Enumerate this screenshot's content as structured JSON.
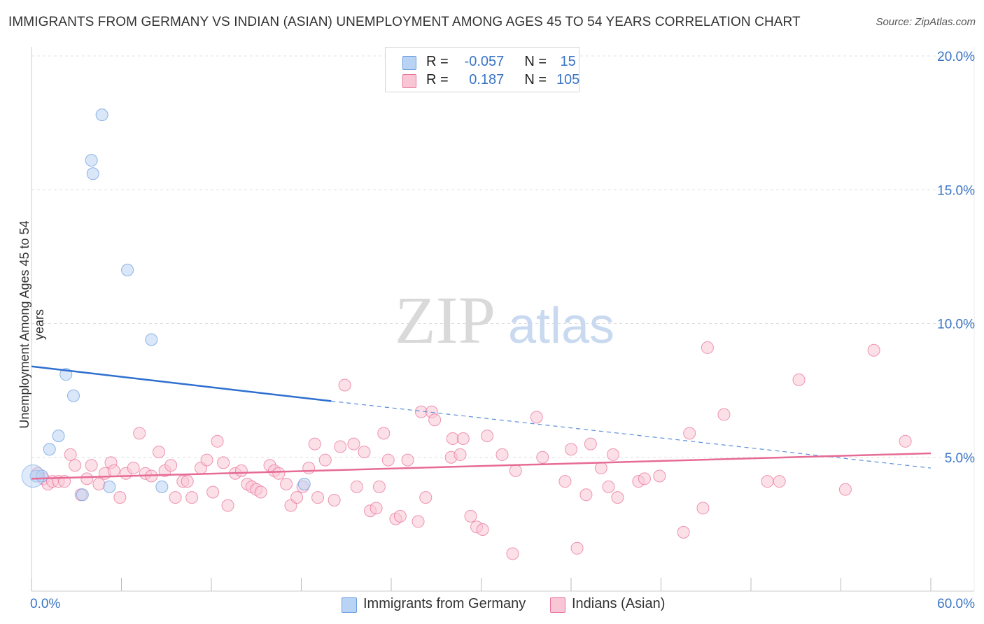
{
  "title": "IMMIGRANTS FROM GERMANY VS INDIAN (ASIAN) UNEMPLOYMENT AMONG AGES 45 TO 54 YEARS CORRELATION CHART",
  "source": "Source: ZipAtlas.com",
  "watermark": {
    "zip": "ZIP",
    "atlas": "atlas"
  },
  "legend": {
    "rows": [
      {
        "r_label": "R =",
        "r_value": "-0.057",
        "n_label": "N =",
        "n_value": "15",
        "color": "#a9c8f0"
      },
      {
        "r_label": "R =",
        "r_value": "0.187",
        "n_label": "N =",
        "n_value": "105",
        "color": "#f7b7cc"
      }
    ]
  },
  "bottom_legend": [
    "Immigrants from Germany",
    "Indians (Asian)"
  ],
  "chart_data": {
    "type": "scatter",
    "title": "IMMIGRANTS FROM GERMANY VS INDIAN (ASIAN) UNEMPLOYMENT AMONG AGES 45 TO 54 YEARS CORRELATION CHART",
    "xlabel": "",
    "ylabel": "Unemployment Among Ages 45 to 54 years",
    "xlim": [
      0,
      60
    ],
    "ylim": [
      0,
      20.5
    ],
    "x_tick_labels": [
      "0.0%",
      "60.0%"
    ],
    "y_ticks": [
      5,
      10,
      15,
      20
    ],
    "y_tick_labels": [
      "5.0%",
      "10.0%",
      "15.0%",
      "20.0%"
    ],
    "series": [
      {
        "name": "Immigrants from Germany",
        "color": "#6b9de0",
        "fill": "#b9d3f4",
        "r": -0.057,
        "n": 15,
        "points": [
          [
            0.3,
            4.3
          ],
          [
            0.7,
            4.3
          ],
          [
            1.2,
            5.3
          ],
          [
            1.8,
            5.8
          ],
          [
            2.3,
            8.1
          ],
          [
            2.8,
            7.3
          ],
          [
            3.4,
            3.6
          ],
          [
            4.0,
            16.1
          ],
          [
            4.1,
            15.6
          ],
          [
            4.7,
            17.8
          ],
          [
            5.2,
            3.9
          ],
          [
            6.4,
            12.0
          ],
          [
            8.0,
            9.4
          ],
          [
            8.7,
            3.9
          ],
          [
            18.2,
            4.0
          ]
        ],
        "trend": {
          "x": [
            0,
            20
          ],
          "y": [
            8.4,
            7.1
          ],
          "dashed_to": [
            60,
            4.6
          ]
        }
      },
      {
        "name": "Indians (Asian)",
        "color": "#e8749c",
        "fill": "#f9c6d6",
        "r": 0.187,
        "n": 105,
        "points": [
          [
            0.4,
            4.4
          ],
          [
            0.8,
            4.2
          ],
          [
            1.1,
            4.0
          ],
          [
            1.4,
            4.1
          ],
          [
            1.8,
            4.1
          ],
          [
            2.2,
            4.1
          ],
          [
            2.6,
            5.1
          ],
          [
            2.9,
            4.7
          ],
          [
            3.3,
            3.6
          ],
          [
            3.7,
            4.2
          ],
          [
            4.0,
            4.7
          ],
          [
            4.5,
            4.0
          ],
          [
            4.9,
            4.4
          ],
          [
            5.3,
            4.8
          ],
          [
            5.5,
            4.5
          ],
          [
            5.9,
            3.5
          ],
          [
            6.3,
            4.4
          ],
          [
            6.8,
            4.6
          ],
          [
            7.2,
            5.9
          ],
          [
            7.6,
            4.4
          ],
          [
            8.0,
            4.3
          ],
          [
            8.5,
            5.2
          ],
          [
            8.9,
            4.5
          ],
          [
            9.3,
            4.7
          ],
          [
            9.6,
            3.5
          ],
          [
            10.1,
            4.1
          ],
          [
            10.4,
            4.1
          ],
          [
            10.7,
            3.5
          ],
          [
            11.3,
            4.6
          ],
          [
            11.7,
            4.9
          ],
          [
            12.1,
            3.7
          ],
          [
            12.4,
            5.6
          ],
          [
            12.8,
            4.8
          ],
          [
            13.1,
            3.2
          ],
          [
            13.6,
            4.4
          ],
          [
            14.0,
            4.5
          ],
          [
            14.4,
            4.0
          ],
          [
            14.7,
            3.9
          ],
          [
            15.0,
            3.8
          ],
          [
            15.3,
            3.7
          ],
          [
            15.9,
            4.7
          ],
          [
            16.2,
            4.5
          ],
          [
            16.5,
            4.4
          ],
          [
            17.0,
            4.0
          ],
          [
            17.3,
            3.2
          ],
          [
            17.7,
            3.5
          ],
          [
            18.1,
            3.9
          ],
          [
            18.5,
            4.6
          ],
          [
            18.9,
            5.5
          ],
          [
            19.1,
            3.5
          ],
          [
            19.6,
            4.9
          ],
          [
            20.2,
            3.4
          ],
          [
            20.6,
            5.4
          ],
          [
            20.9,
            7.7
          ],
          [
            21.5,
            5.5
          ],
          [
            21.7,
            3.9
          ],
          [
            22.2,
            5.2
          ],
          [
            22.6,
            3.0
          ],
          [
            23.0,
            3.1
          ],
          [
            23.2,
            3.9
          ],
          [
            23.5,
            5.9
          ],
          [
            23.8,
            4.9
          ],
          [
            24.3,
            2.7
          ],
          [
            24.6,
            2.8
          ],
          [
            25.1,
            4.9
          ],
          [
            25.8,
            2.6
          ],
          [
            26.0,
            6.7
          ],
          [
            26.3,
            3.5
          ],
          [
            26.7,
            6.7
          ],
          [
            26.9,
            6.4
          ],
          [
            28.0,
            5.0
          ],
          [
            28.1,
            5.7
          ],
          [
            28.6,
            5.1
          ],
          [
            28.8,
            5.7
          ],
          [
            29.3,
            2.8
          ],
          [
            29.7,
            2.4
          ],
          [
            30.1,
            2.3
          ],
          [
            30.4,
            5.8
          ],
          [
            31.4,
            5.1
          ],
          [
            32.1,
            1.4
          ],
          [
            32.3,
            4.5
          ],
          [
            33.7,
            6.5
          ],
          [
            34.1,
            5.0
          ],
          [
            35.6,
            4.1
          ],
          [
            36.0,
            5.3
          ],
          [
            36.4,
            1.6
          ],
          [
            37.0,
            3.6
          ],
          [
            37.3,
            5.5
          ],
          [
            38.0,
            4.6
          ],
          [
            38.5,
            3.9
          ],
          [
            38.8,
            5.1
          ],
          [
            39.1,
            3.5
          ],
          [
            40.5,
            4.1
          ],
          [
            40.9,
            4.2
          ],
          [
            41.9,
            4.3
          ],
          [
            43.5,
            2.2
          ],
          [
            43.9,
            5.9
          ],
          [
            44.8,
            3.1
          ],
          [
            45.1,
            9.1
          ],
          [
            46.2,
            6.6
          ],
          [
            49.1,
            4.1
          ],
          [
            49.9,
            4.1
          ],
          [
            51.2,
            7.9
          ],
          [
            54.3,
            3.8
          ],
          [
            56.2,
            9.0
          ],
          [
            58.3,
            5.6
          ]
        ],
        "trend": {
          "x": [
            0,
            60
          ],
          "y": [
            4.2,
            5.15
          ]
        }
      }
    ]
  }
}
